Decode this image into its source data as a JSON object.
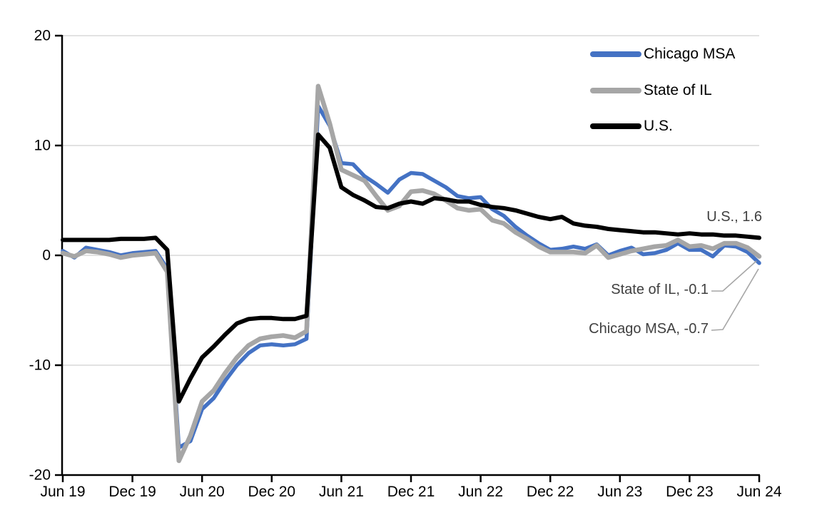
{
  "chart_data": {
    "type": "line",
    "title": "",
    "xlabel": "",
    "ylabel": "",
    "x_tick_labels": [
      "Jun 19",
      "Dec 19",
      "Jun 20",
      "Dec 20",
      "Jun 21",
      "Dec 21",
      "Jun 22",
      "Dec 22",
      "Jun 23",
      "Dec 23",
      "Jun 24"
    ],
    "x_tick_every": 6,
    "n_points": 61,
    "x_range_months": "Jun 2019 - Jun 2024 (monthly)",
    "ylim": [
      -20,
      20
    ],
    "y_ticks": [
      20,
      10,
      0,
      -10,
      -20
    ],
    "grid": "horizontal",
    "legend_position": "top-right-inside",
    "series": [
      {
        "name": "Chicago MSA",
        "color": "#4472C4",
        "stroke_width": 5.5,
        "values": [
          0.4,
          -0.2,
          0.7,
          0.5,
          0.3,
          0.0,
          0.2,
          0.3,
          0.4,
          -1.2,
          -17.5,
          -16.9,
          -14.0,
          -13.0,
          -11.4,
          -10.0,
          -8.9,
          -8.2,
          -8.1,
          -8.2,
          -8.1,
          -7.6,
          13.6,
          11.8,
          8.4,
          8.3,
          7.2,
          6.5,
          5.7,
          6.9,
          7.5,
          7.4,
          6.8,
          6.2,
          5.4,
          5.2,
          5.3,
          4.2,
          3.6,
          2.6,
          1.8,
          1.1,
          0.5,
          0.6,
          0.8,
          0.6,
          1.0,
          0.0,
          0.4,
          0.7,
          0.1,
          0.2,
          0.5,
          1.1,
          0.5,
          0.5,
          -0.1,
          0.9,
          0.8,
          0.3,
          -0.7
        ]
      },
      {
        "name": "State of IL",
        "color": "#A6A6A6",
        "stroke_width": 6.5,
        "values": [
          0.2,
          -0.1,
          0.4,
          0.3,
          0.1,
          -0.2,
          0.0,
          0.1,
          0.2,
          -1.5,
          -18.7,
          -16.4,
          -13.3,
          -12.3,
          -10.7,
          -9.3,
          -8.2,
          -7.6,
          -7.4,
          -7.3,
          -7.5,
          -6.9,
          15.4,
          12.0,
          7.8,
          7.3,
          6.8,
          5.4,
          4.1,
          4.5,
          5.8,
          5.9,
          5.6,
          5.0,
          4.3,
          4.1,
          4.2,
          3.2,
          2.9,
          2.1,
          1.5,
          0.8,
          0.3,
          0.3,
          0.3,
          0.2,
          0.9,
          -0.2,
          0.1,
          0.4,
          0.6,
          0.8,
          0.9,
          1.4,
          0.8,
          0.9,
          0.6,
          1.1,
          1.1,
          0.7,
          -0.1
        ]
      },
      {
        "name": "U.S.",
        "color": "#000000",
        "stroke_width": 6,
        "values": [
          1.4,
          1.4,
          1.4,
          1.4,
          1.4,
          1.5,
          1.5,
          1.5,
          1.6,
          0.5,
          -13.3,
          -11.2,
          -9.3,
          -8.3,
          -7.2,
          -6.2,
          -5.8,
          -5.7,
          -5.7,
          -5.8,
          -5.8,
          -5.5,
          11.0,
          9.8,
          6.2,
          5.5,
          5.0,
          4.4,
          4.3,
          4.7,
          4.9,
          4.7,
          5.2,
          5.1,
          4.9,
          4.9,
          4.6,
          4.4,
          4.3,
          4.1,
          3.8,
          3.5,
          3.3,
          3.5,
          2.9,
          2.7,
          2.6,
          2.4,
          2.3,
          2.2,
          2.1,
          2.1,
          2.0,
          1.9,
          2.0,
          1.9,
          1.9,
          1.8,
          1.8,
          1.7,
          1.6
        ]
      }
    ],
    "annotations": [
      {
        "text": "U.S., 1.6",
        "series": "U.S.",
        "value": 1.6
      },
      {
        "text": "State of IL, -0.1",
        "series": "State of IL",
        "value": -0.1
      },
      {
        "text": "Chicago MSA, -0.7",
        "series": "Chicago MSA",
        "value": -0.7
      }
    ],
    "colors": {
      "axis": "#000000",
      "gridline": "#D9D9D9",
      "annotation_text": "#404040",
      "leader_line": "#A6A6A6",
      "background": "#FFFFFF"
    }
  }
}
